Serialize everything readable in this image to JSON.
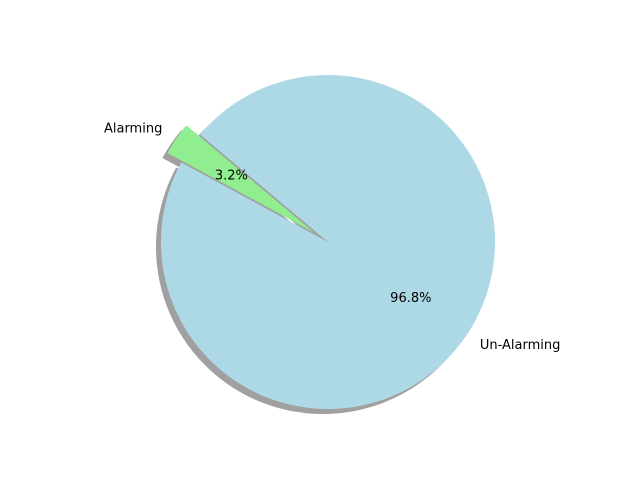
{
  "chart_data": {
    "type": "pie",
    "slices": [
      {
        "label": "Alarming",
        "value": 3.2,
        "pct_label": "3.2%",
        "color": "#90ee90",
        "exploded": true
      },
      {
        "label": "Un-Alarming",
        "value": 96.8,
        "pct_label": "96.8%",
        "color": "#add8e6",
        "exploded": false
      }
    ],
    "shadow": true,
    "start_angle_deg": 140
  }
}
